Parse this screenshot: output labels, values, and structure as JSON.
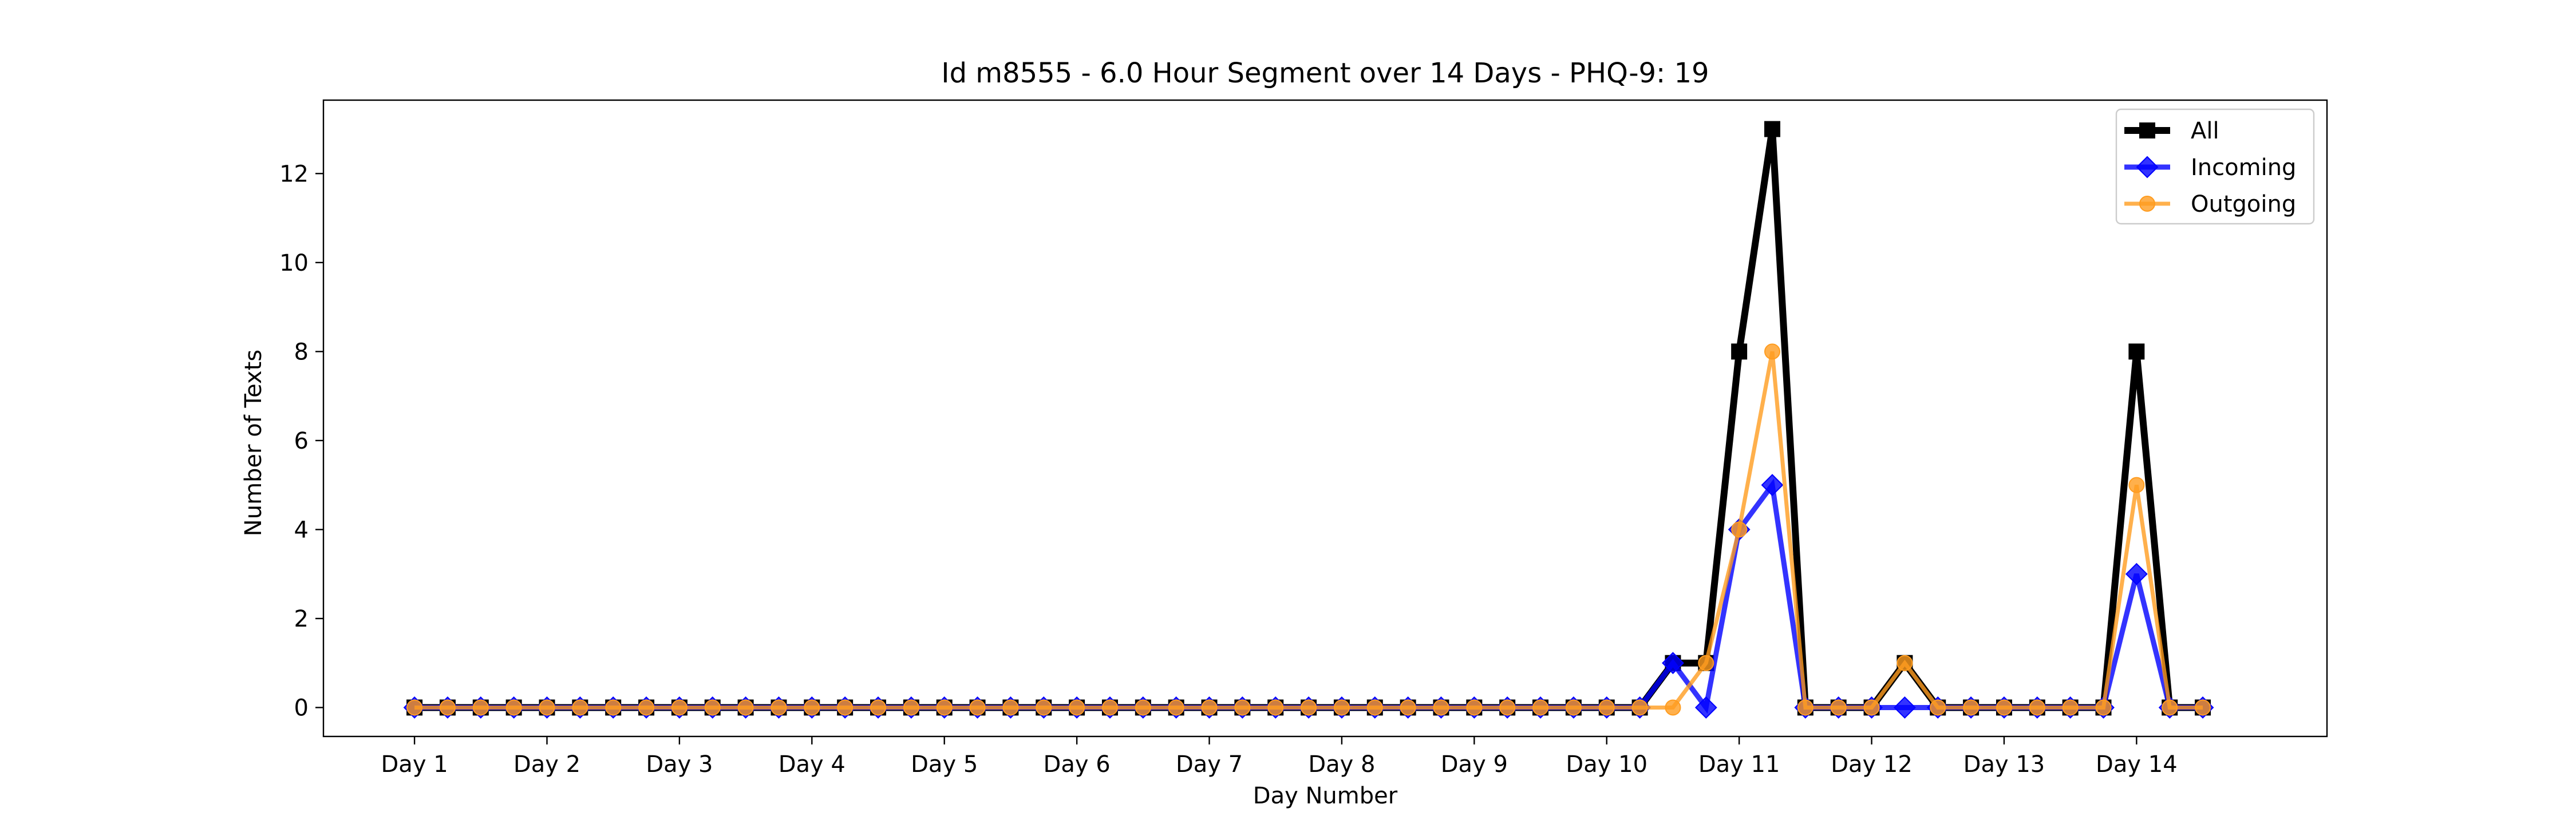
{
  "chart_data": {
    "type": "line",
    "title": "Id m8555 - 6.0 Hour Segment over 14 Days - PHQ-9: 19",
    "xlabel": "Day Number",
    "ylabel": "Number of Texts",
    "x_tick_labels": [
      "Day 1",
      "Day 2",
      "Day 3",
      "Day 4",
      "Day 5",
      "Day 6",
      "Day 7",
      "Day 8",
      "Day 9",
      "Day 10",
      "Day 11",
      "Day 12",
      "Day 13",
      "Day 14"
    ],
    "x_tick_positions": [
      0,
      4,
      8,
      12,
      16,
      20,
      24,
      28,
      32,
      36,
      40,
      44,
      48,
      52
    ],
    "y_ticks": [
      0,
      2,
      4,
      6,
      8,
      10,
      12
    ],
    "ylim": [
      -0.65,
      13.65
    ],
    "xlim": [
      -2.75,
      57.75
    ],
    "grid": false,
    "legend_position": "top-right",
    "series": [
      {
        "name": "All",
        "color": "#000000",
        "marker": "square",
        "values": [
          0,
          0,
          0,
          0,
          0,
          0,
          0,
          0,
          0,
          0,
          0,
          0,
          0,
          0,
          0,
          0,
          0,
          0,
          0,
          0,
          0,
          0,
          0,
          0,
          0,
          0,
          0,
          0,
          0,
          0,
          0,
          0,
          0,
          0,
          0,
          0,
          0,
          0,
          1,
          1,
          8,
          13,
          0,
          0,
          0,
          1,
          0,
          0,
          0,
          0,
          0,
          0,
          8,
          0,
          0
        ]
      },
      {
        "name": "Incoming",
        "color": "#0000ff",
        "marker": "diamond",
        "values": [
          0,
          0,
          0,
          0,
          0,
          0,
          0,
          0,
          0,
          0,
          0,
          0,
          0,
          0,
          0,
          0,
          0,
          0,
          0,
          0,
          0,
          0,
          0,
          0,
          0,
          0,
          0,
          0,
          0,
          0,
          0,
          0,
          0,
          0,
          0,
          0,
          0,
          0,
          1,
          0,
          4,
          5,
          0,
          0,
          0,
          0,
          0,
          0,
          0,
          0,
          0,
          0,
          3,
          0,
          0
        ]
      },
      {
        "name": "Outgoing",
        "color": "#ff9c1f",
        "marker": "circle",
        "values": [
          0,
          0,
          0,
          0,
          0,
          0,
          0,
          0,
          0,
          0,
          0,
          0,
          0,
          0,
          0,
          0,
          0,
          0,
          0,
          0,
          0,
          0,
          0,
          0,
          0,
          0,
          0,
          0,
          0,
          0,
          0,
          0,
          0,
          0,
          0,
          0,
          0,
          0,
          0,
          1,
          4,
          8,
          0,
          0,
          0,
          1,
          0,
          0,
          0,
          0,
          0,
          0,
          5,
          0,
          0
        ]
      }
    ]
  }
}
